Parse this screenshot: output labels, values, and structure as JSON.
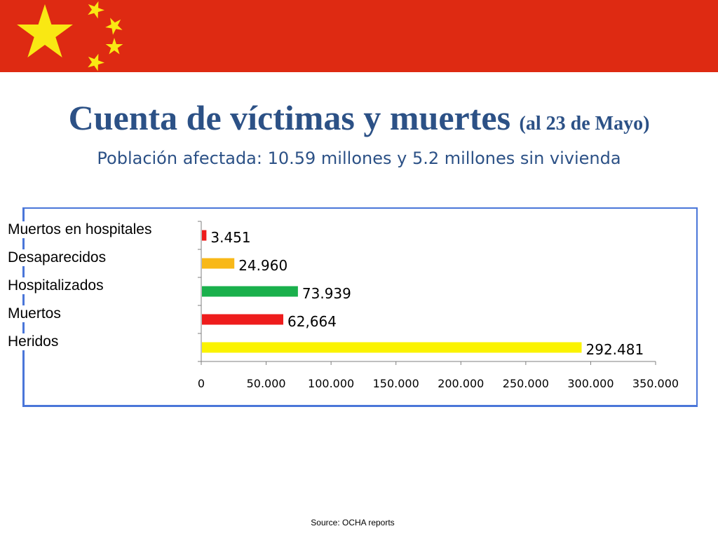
{
  "banner": {
    "color": "#de2a12",
    "star_color": "#f9e813",
    "icon": "china-flag-stars-icon"
  },
  "title": {
    "main": "Cuenta de víctimas y muertes",
    "date_note": "(al 23 de Mayo)",
    "subtitle": "Población afectada: 10.59 millones y 5.2 millones sin vivienda"
  },
  "chart_data": {
    "type": "bar",
    "orientation": "horizontal",
    "categories": [
      "Muertos en hospitales",
      "Desaparecidos",
      "Hospitalizados",
      "Muertos",
      "Heridos"
    ],
    "values": [
      3451,
      24960,
      73939,
      62664,
      292481
    ],
    "data_labels": [
      "3.451",
      "24.960",
      "73.939",
      "62,664",
      "292.481"
    ],
    "colors": [
      "#ee1c1c",
      "#f8b818",
      "#1ab04c",
      "#ee1c1c",
      "#fbf300"
    ],
    "xticks": [
      "0",
      "50.000",
      "100.000",
      "150.000",
      "200.000",
      "250.000",
      "300.000",
      "350.000"
    ],
    "xlim": [
      0,
      350000
    ],
    "grid": false,
    "legend": "none"
  },
  "footer": {
    "source": "Source: OCHA reports"
  }
}
